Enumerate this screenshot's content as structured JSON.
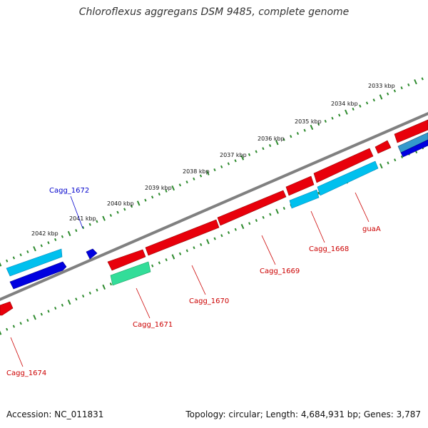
{
  "title": "Chloroflexus aggregans DSM 9485, complete genome",
  "footer": {
    "accession": "Accession: NC_011831",
    "summary": "Topology: circular; Length: 4,684,931 bp; Genes: 3,787"
  },
  "colors": {
    "backbone": "#808080",
    "tick_dots": "#2e8b2e",
    "forward_cds": "#e8000b",
    "reverse_cds": "#00c0ee",
    "trna": "#0000e0",
    "rrna_other": "#33dd99",
    "label_forward": "#cc0000",
    "label_reverse": "#0000cc"
  },
  "scale_ticks": [
    "2042 kbp",
    "2041 kbp",
    "2040 kbp",
    "2039 kbp",
    "2038 kbp",
    "2037 kbp",
    "2036 kbp",
    "2035 kbp",
    "2034 kbp",
    "2033 kbp"
  ],
  "gene_labels": [
    {
      "text": "Cagg_1672",
      "strand": "reverse"
    },
    {
      "text": "guaA",
      "strand": "forward"
    },
    {
      "text": "Cagg_1668",
      "strand": "forward"
    },
    {
      "text": "Cagg_1669",
      "strand": "forward"
    },
    {
      "text": "Cagg_1670",
      "strand": "forward"
    },
    {
      "text": "Cagg_1671",
      "strand": "forward"
    },
    {
      "text": "Cagg_1674",
      "strand": "forward"
    }
  ]
}
